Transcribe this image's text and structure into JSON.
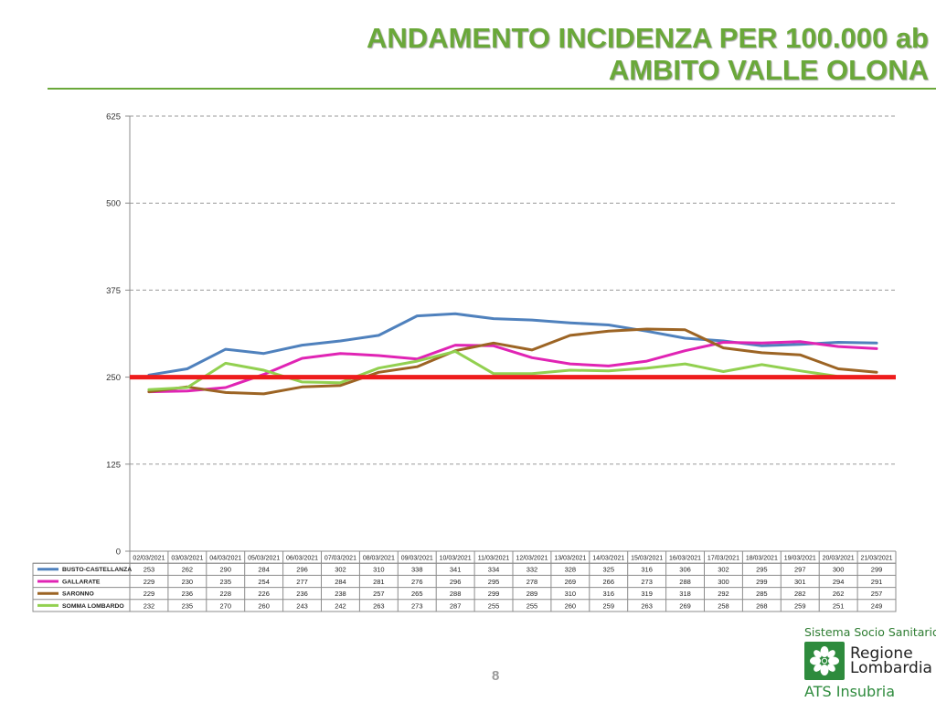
{
  "slide": {
    "title_line1": "ANDAMENTO INCIDENZA PER 100.000 ab",
    "title_line2": "AMBITO VALLE OLONA",
    "page_number": "8",
    "accent_color": "#6aa83a"
  },
  "logo": {
    "top_text": "Sistema Socio Sanitario",
    "region_line1": "Regione",
    "region_line2": "Lombardia",
    "ats_text": "ATS Insubria",
    "icon": "lombardy-rose-icon",
    "color": "#2e8b3d"
  },
  "chart_data": {
    "type": "line",
    "title": "",
    "xlabel": "",
    "ylabel": "",
    "ylim": [
      0,
      625
    ],
    "yticks": [
      0,
      125,
      250,
      375,
      500,
      625
    ],
    "grid": true,
    "legend": "data table below chart",
    "threshold": {
      "value": 250,
      "color": "#ee1c1c"
    },
    "categories": [
      "02/03/2021",
      "03/03/2021",
      "04/03/2021",
      "05/03/2021",
      "06/03/2021",
      "07/03/2021",
      "08/03/2021",
      "09/03/2021",
      "10/03/2021",
      "11/03/2021",
      "12/03/2021",
      "13/03/2021",
      "14/03/2021",
      "15/03/2021",
      "16/03/2021",
      "17/03/2021",
      "18/03/2021",
      "19/03/2021",
      "20/03/2021",
      "21/03/2021"
    ],
    "series": [
      {
        "name": "BUSTO-CASTELLANZA",
        "color": "#4f81bd",
        "values": [
          253,
          262,
          290,
          284,
          296,
          302,
          310,
          338,
          341,
          334,
          332,
          328,
          325,
          316,
          306,
          302,
          295,
          297,
          300,
          299
        ]
      },
      {
        "name": "GALLARATE",
        "color": "#e024b4",
        "values": [
          229,
          230,
          235,
          254,
          277,
          284,
          281,
          276,
          296,
          295,
          278,
          269,
          266,
          273,
          288,
          300,
          299,
          301,
          294,
          291
        ]
      },
      {
        "name": "SARONNO",
        "color": "#9c6424",
        "values": [
          229,
          236,
          228,
          226,
          236,
          238,
          257,
          265,
          288,
          299,
          289,
          310,
          316,
          319,
          318,
          292,
          285,
          282,
          262,
          257
        ]
      },
      {
        "name": "SOMMA LOMBARDO",
        "color": "#92d050",
        "values": [
          232,
          235,
          270,
          260,
          243,
          242,
          263,
          273,
          287,
          255,
          255,
          260,
          259,
          263,
          269,
          258,
          268,
          259,
          251,
          249
        ]
      }
    ]
  }
}
